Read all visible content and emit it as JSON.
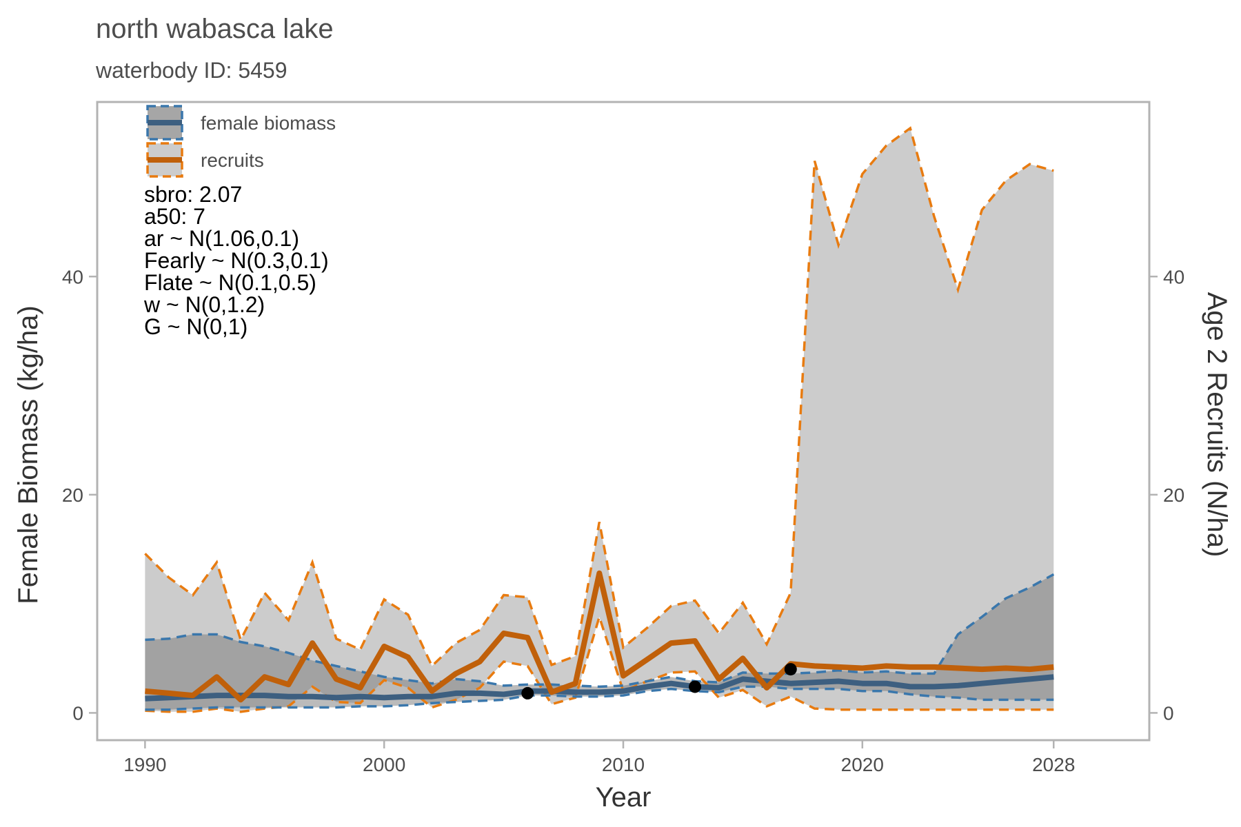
{
  "chart_data": {
    "type": "line",
    "title": "north wabasca lake",
    "subtitle": "waterbody ID: 5459",
    "xlabel": "Year",
    "ylabel": "Female Biomass (kg/ha)",
    "ylabel_right": "Age 2 Recruits (N/ha)",
    "xlim": [
      1988,
      2032
    ],
    "ylim": [
      -2.5,
      56
    ],
    "x_ticks": [
      1990,
      2000,
      2010,
      2020,
      2028
    ],
    "y_ticks": [
      0,
      20,
      40
    ],
    "grid": false,
    "legend_position": "top-left",
    "colors": {
      "biomass": "#3d5f80",
      "biomass_dash": "#3a77ac",
      "recruits": "#c0600a",
      "recruits_dash": "#e87b10",
      "ribbon_recruits": "#cccccc",
      "ribbon_biomass": "#a6a6a6",
      "observations": "#000000",
      "frame": "#b3b3b3"
    },
    "years": [
      1990,
      1991,
      1992,
      1993,
      1994,
      1995,
      1996,
      1997,
      1998,
      1999,
      2000,
      2001,
      2002,
      2003,
      2004,
      2005,
      2006,
      2007,
      2008,
      2009,
      2010,
      2011,
      2012,
      2013,
      2014,
      2015,
      2016,
      2017,
      2018,
      2019,
      2020,
      2021,
      2022,
      2023,
      2024,
      2025,
      2026,
      2027,
      2028
    ],
    "series": [
      {
        "name": "female biomass",
        "median": [
          1.3,
          1.4,
          1.5,
          1.6,
          1.6,
          1.6,
          1.5,
          1.5,
          1.4,
          1.5,
          1.4,
          1.5,
          1.5,
          1.8,
          1.8,
          1.7,
          2.0,
          2.0,
          1.9,
          1.9,
          2.0,
          2.4,
          2.7,
          2.4,
          2.3,
          3.1,
          2.9,
          2.7,
          2.8,
          2.9,
          2.7,
          2.7,
          2.4,
          2.4,
          2.5,
          2.7,
          2.9,
          3.1,
          3.3
        ],
        "lower": [
          0.3,
          0.3,
          0.4,
          0.5,
          0.5,
          0.5,
          0.5,
          0.5,
          0.5,
          0.6,
          0.6,
          0.7,
          0.9,
          1.0,
          1.1,
          1.2,
          1.6,
          1.6,
          1.5,
          1.5,
          1.6,
          2.0,
          2.2,
          2.0,
          1.9,
          2.4,
          2.4,
          2.2,
          2.2,
          2.2,
          2.0,
          2.0,
          1.7,
          1.5,
          1.4,
          1.2,
          1.2,
          1.2,
          1.2
        ],
        "upper": [
          6.7,
          6.8,
          7.2,
          7.2,
          6.5,
          6.1,
          5.5,
          4.8,
          4.3,
          3.8,
          3.3,
          3.0,
          2.7,
          3.1,
          2.9,
          2.5,
          2.6,
          2.6,
          2.5,
          2.4,
          2.5,
          2.9,
          3.3,
          2.9,
          2.8,
          3.7,
          3.6,
          3.6,
          3.7,
          3.9,
          3.7,
          3.8,
          3.6,
          3.6,
          7.2,
          8.8,
          10.5,
          11.5,
          12.7
        ]
      },
      {
        "name": "recruits",
        "median": [
          2.0,
          1.8,
          1.6,
          3.3,
          1.2,
          3.3,
          2.6,
          6.4,
          3.1,
          2.3,
          6.1,
          5.1,
          2.0,
          3.6,
          4.7,
          7.3,
          6.9,
          1.9,
          2.7,
          12.8,
          3.4,
          4.9,
          6.4,
          6.6,
          3.1,
          5.0,
          2.3,
          4.5,
          4.3,
          4.2,
          4.1,
          4.3,
          4.2,
          4.2,
          4.1,
          4.0,
          4.1,
          4.0,
          4.2
        ],
        "lower": [
          0.2,
          0.1,
          0.1,
          0.4,
          0.1,
          0.4,
          0.6,
          2.4,
          1.0,
          0.9,
          3.0,
          2.3,
          0.5,
          1.2,
          2.3,
          4.7,
          4.3,
          0.8,
          1.4,
          8.8,
          2.0,
          2.9,
          3.7,
          3.8,
          1.4,
          2.1,
          0.6,
          1.5,
          0.4,
          0.3,
          0.3,
          0.3,
          0.3,
          0.3,
          0.3,
          0.3,
          0.3,
          0.3,
          0.3
        ],
        "upper": [
          14.6,
          12.4,
          10.8,
          13.8,
          6.7,
          11.0,
          8.5,
          13.8,
          6.8,
          5.8,
          10.4,
          9.0,
          4.3,
          6.4,
          7.6,
          10.8,
          10.6,
          4.4,
          5.2,
          17.5,
          6.0,
          7.8,
          9.8,
          10.3,
          7.3,
          10.1,
          6.3,
          11.0,
          50.6,
          42.9,
          49.4,
          52.0,
          53.6,
          45.5,
          38.8,
          46.1,
          48.8,
          50.3,
          49.7
        ]
      }
    ],
    "observations": [
      {
        "x": 2006,
        "y": 1.8
      },
      {
        "x": 2013,
        "y": 2.4
      },
      {
        "x": 2017,
        "y": 4.0
      }
    ],
    "legend": [
      "female biomass",
      "recruits"
    ],
    "annotations": [
      "sbro: 2.07",
      "a50: 7",
      "ar ~ N(1.06,0.1)",
      "Fearly ~ N(0.3,0.1)",
      "Flate ~ N(0.1,0.5)",
      "w ~ N(0,1.2)",
      "G ~ N(0,1)"
    ]
  }
}
